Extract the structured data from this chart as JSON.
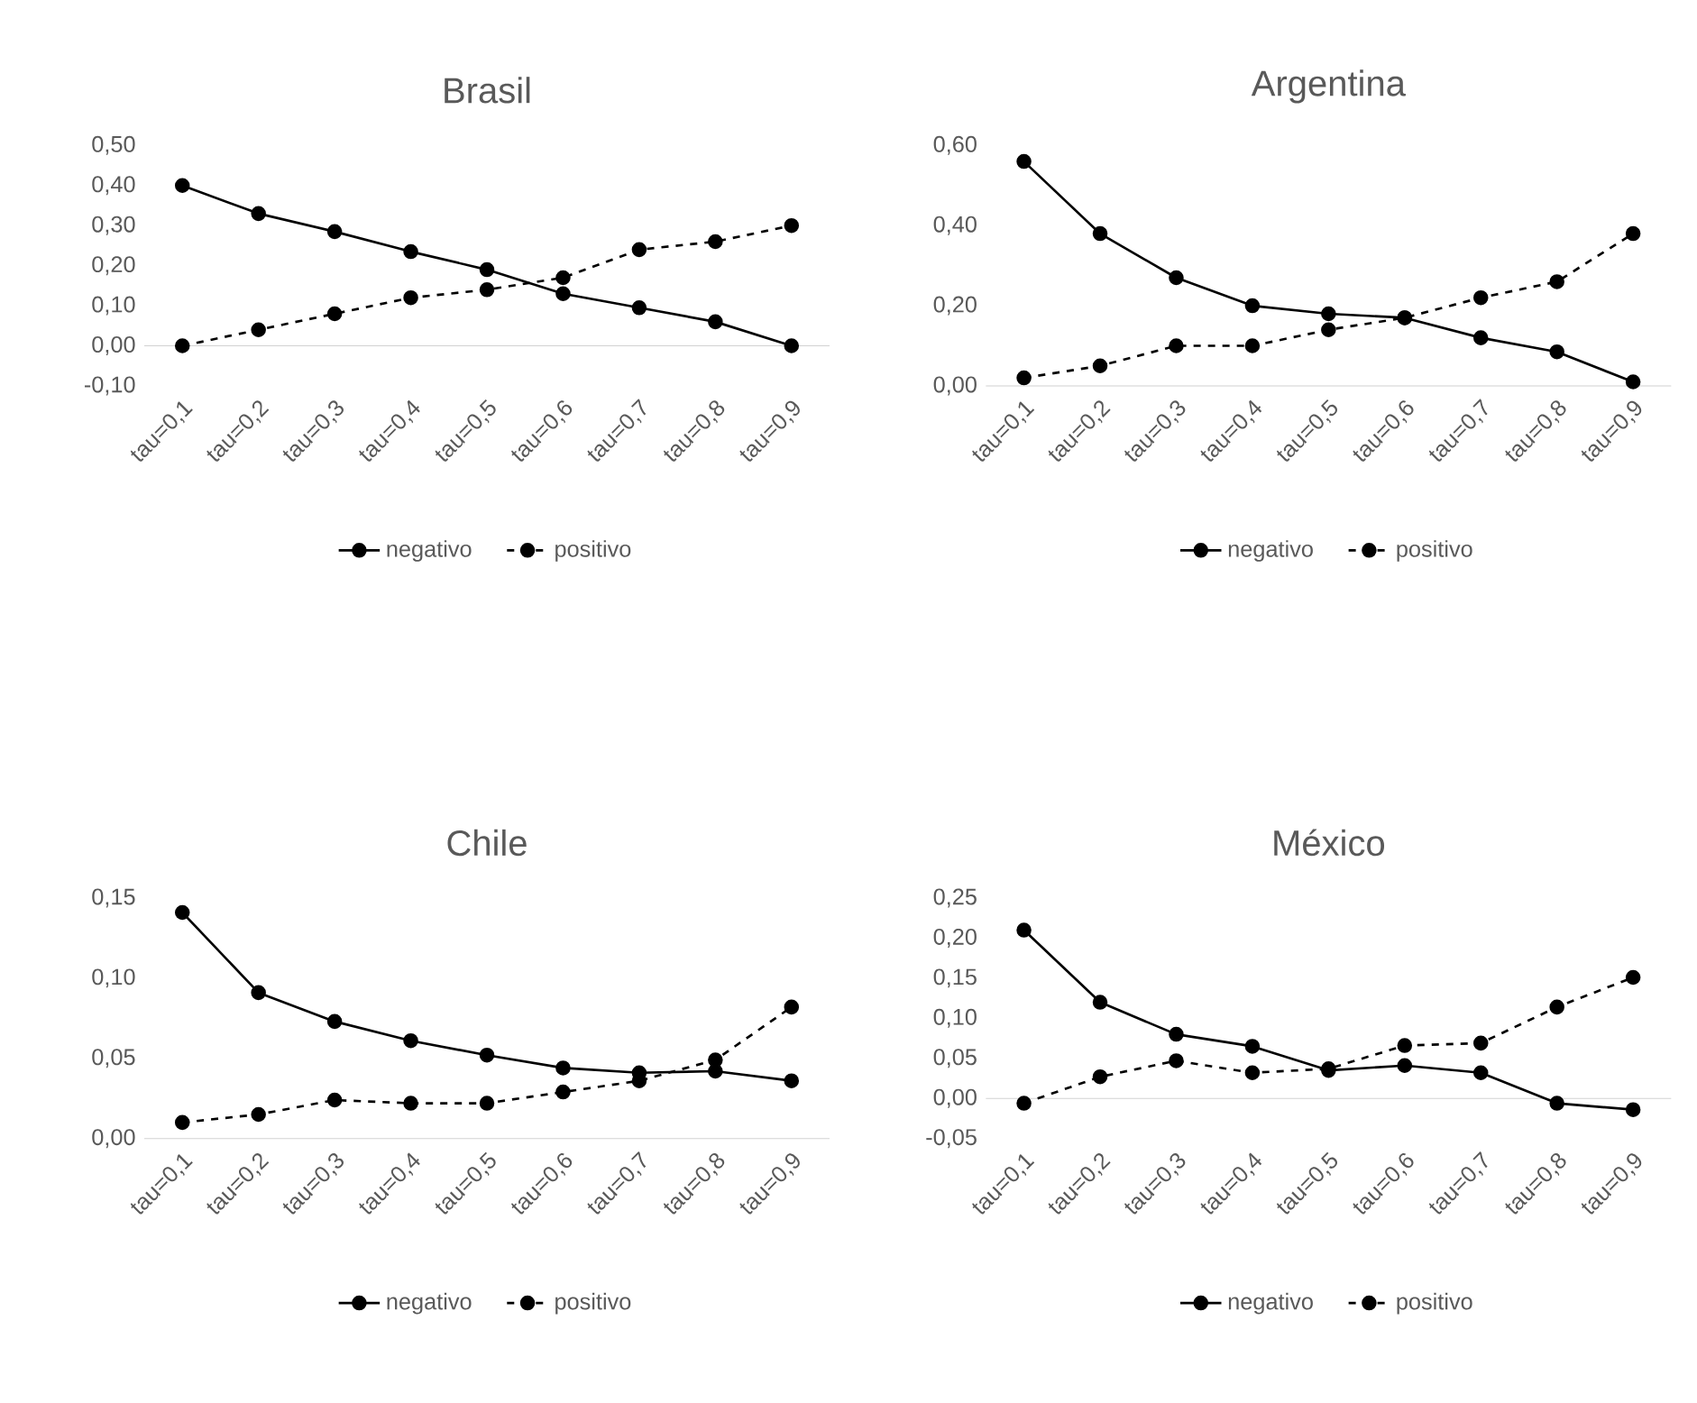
{
  "chart_data": [
    {
      "type": "line",
      "title": "Brasil",
      "categories": [
        "tau=0,1",
        "tau=0,2",
        "tau=0,3",
        "tau=0,4",
        "tau=0,5",
        "tau=0,6",
        "tau=0,7",
        "tau=0,8",
        "tau=0,9"
      ],
      "ylim": [
        -0.1,
        0.5
      ],
      "yticks": [
        {
          "value": -0.1,
          "label": "-0,10"
        },
        {
          "value": 0,
          "label": "0,00"
        },
        {
          "value": 0.1,
          "label": "0,10"
        },
        {
          "value": 0.2,
          "label": "0,20"
        },
        {
          "value": 0.3,
          "label": "0,30"
        },
        {
          "value": 0.4,
          "label": "0,40"
        },
        {
          "value": 0.5,
          "label": "0,50"
        }
      ],
      "legend": "bottom",
      "marker": "circle",
      "series": [
        {
          "name": "negativo",
          "color": "#000000",
          "line_style": "solid",
          "values": [
            0.4,
            0.33,
            0.285,
            0.235,
            0.19,
            0.13,
            0.095,
            0.06,
            0.0
          ]
        },
        {
          "name": "positivo",
          "color": "#000000",
          "line_style": "dashed",
          "values": [
            0.0,
            0.04,
            0.08,
            0.12,
            0.14,
            0.17,
            0.24,
            0.26,
            0.3
          ]
        }
      ]
    },
    {
      "type": "line",
      "title": "Argentina",
      "categories": [
        "tau=0,1",
        "tau=0,2",
        "tau=0,3",
        "tau=0,4",
        "tau=0,5",
        "tau=0,6",
        "tau=0,7",
        "tau=0,8",
        "tau=0,9"
      ],
      "ylim": [
        0,
        0.6
      ],
      "yticks": [
        {
          "value": 0,
          "label": "0,00"
        },
        {
          "value": 0.2,
          "label": "0,20"
        },
        {
          "value": 0.4,
          "label": "0,40"
        },
        {
          "value": 0.6,
          "label": "0,60"
        }
      ],
      "legend": "bottom",
      "marker": "circle",
      "series": [
        {
          "name": "negativo",
          "color": "#000000",
          "line_style": "solid",
          "values": [
            0.56,
            0.38,
            0.27,
            0.2,
            0.18,
            0.17,
            0.12,
            0.085,
            0.01
          ]
        },
        {
          "name": "positivo",
          "color": "#000000",
          "line_style": "dashed",
          "values": [
            0.02,
            0.05,
            0.1,
            0.1,
            0.14,
            0.17,
            0.22,
            0.26,
            0.38
          ]
        }
      ]
    },
    {
      "type": "line",
      "title": "Chile",
      "categories": [
        "tau=0,1",
        "tau=0,2",
        "tau=0,3",
        "tau=0,4",
        "tau=0,5",
        "tau=0,6",
        "tau=0,7",
        "tau=0,8",
        "tau=0,9"
      ],
      "ylim": [
        0,
        0.15
      ],
      "yticks": [
        {
          "value": 0,
          "label": "0,00"
        },
        {
          "value": 0.05,
          "label": "0,05"
        },
        {
          "value": 0.1,
          "label": "0,10"
        },
        {
          "value": 0.15,
          "label": "0,15"
        }
      ],
      "legend": "bottom",
      "marker": "circle",
      "series": [
        {
          "name": "negativo",
          "color": "#000000",
          "line_style": "solid",
          "values": [
            0.141,
            0.091,
            0.073,
            0.061,
            0.052,
            0.044,
            0.041,
            0.042,
            0.036
          ]
        },
        {
          "name": "positivo",
          "color": "#000000",
          "line_style": "dashed",
          "values": [
            0.01,
            0.015,
            0.024,
            0.022,
            0.022,
            0.029,
            0.036,
            0.049,
            0.082
          ]
        }
      ]
    },
    {
      "type": "line",
      "title": "México",
      "categories": [
        "tau=0,1",
        "tau=0,2",
        "tau=0,3",
        "tau=0,4",
        "tau=0,5",
        "tau=0,6",
        "tau=0,7",
        "tau=0,8",
        "tau=0,9"
      ],
      "ylim": [
        -0.05,
        0.25
      ],
      "yticks": [
        {
          "value": -0.05,
          "label": "-0,05"
        },
        {
          "value": 0,
          "label": "0,00"
        },
        {
          "value": 0.05,
          "label": "0,05"
        },
        {
          "value": 0.1,
          "label": "0,10"
        },
        {
          "value": 0.15,
          "label": "0,15"
        },
        {
          "value": 0.2,
          "label": "0,20"
        },
        {
          "value": 0.25,
          "label": "0,25"
        }
      ],
      "legend": "bottom",
      "marker": "circle",
      "series": [
        {
          "name": "negativo",
          "color": "#000000",
          "line_style": "solid",
          "values": [
            0.21,
            0.12,
            0.08,
            0.065,
            0.035,
            0.041,
            0.032,
            -0.006,
            -0.014
          ]
        },
        {
          "name": "positivo",
          "color": "#000000",
          "line_style": "dashed",
          "values": [
            -0.006,
            0.027,
            0.047,
            0.032,
            0.037,
            0.066,
            0.069,
            0.114,
            0.151
          ]
        }
      ]
    }
  ]
}
